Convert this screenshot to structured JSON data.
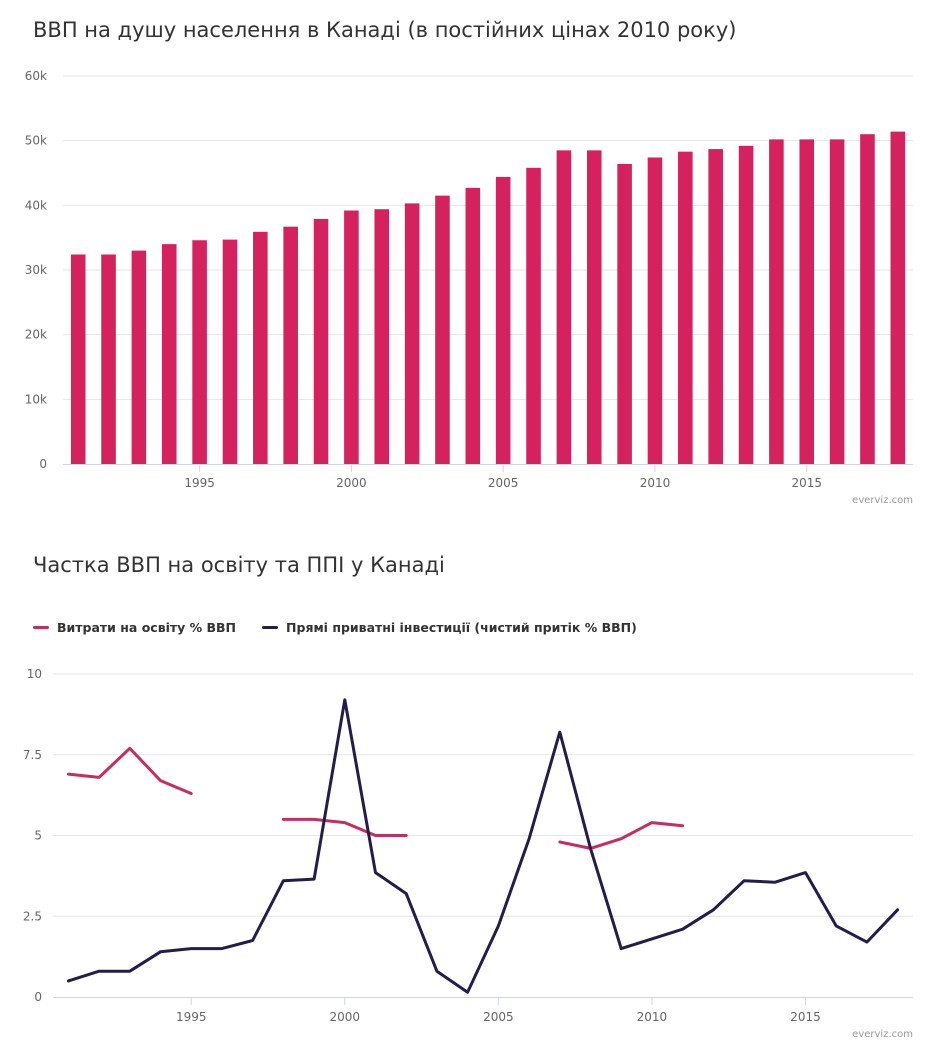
{
  "charts": [
    {
      "title": "ВВП на душу населення в Канаді (в постійних цінах 2010 року)",
      "credit": "everviz.com"
    },
    {
      "title": "Частка ВВП на освіту та ППІ у Канаді",
      "credit": "everviz.com"
    }
  ],
  "chart_data": [
    {
      "type": "bar",
      "title": "ВВП на душу населення в Канаді (в постійних цінах 2010 року)",
      "x": [
        1991,
        1992,
        1993,
        1994,
        1995,
        1996,
        1997,
        1998,
        1999,
        2000,
        2001,
        2002,
        2003,
        2004,
        2005,
        2006,
        2007,
        2008,
        2009,
        2010,
        2011,
        2012,
        2013,
        2014,
        2015,
        2016,
        2017,
        2018
      ],
      "values": [
        32400,
        32400,
        33000,
        34000,
        34600,
        34700,
        35900,
        36700,
        37900,
        39200,
        39400,
        40300,
        41500,
        42700,
        44400,
        45800,
        48500,
        48500,
        46400,
        47400,
        48300,
        48700,
        49200,
        50200,
        50200,
        50200,
        51000,
        51400
      ],
      "ylim": [
        0,
        60000
      ],
      "yticks": [
        0,
        10000,
        20000,
        30000,
        40000,
        50000,
        60000
      ],
      "ytick_labels": [
        "0",
        "10k",
        "20k",
        "30k",
        "40k",
        "50k",
        "60k"
      ],
      "xticks": [
        1995,
        2000,
        2005,
        2010,
        2015
      ],
      "xlim": [
        1990.5,
        2018.5
      ],
      "color": "#d6215f",
      "grid": true,
      "legend": false
    },
    {
      "type": "line",
      "title": "Частка ВВП на освіту та ППІ у Канаді",
      "x": [
        1991,
        1992,
        1993,
        1994,
        1995,
        1996,
        1997,
        1998,
        1999,
        2000,
        2001,
        2002,
        2003,
        2004,
        2005,
        2006,
        2007,
        2008,
        2009,
        2010,
        2011,
        2012,
        2013,
        2014,
        2015,
        2016,
        2017,
        2018
      ],
      "series": [
        {
          "name": "Витрати на освіту % ВВП",
          "color": "#c62d63",
          "values": [
            6.9,
            6.8,
            7.7,
            6.7,
            6.3,
            null,
            null,
            5.5,
            5.5,
            5.4,
            5.0,
            5.0,
            null,
            null,
            null,
            null,
            4.8,
            4.6,
            4.9,
            5.4,
            5.3,
            null,
            null,
            null,
            null,
            null,
            null,
            null
          ]
        },
        {
          "name": "Прямі приватні інвестиції (чистий притік % ВВП)",
          "color": "#241c4b",
          "values": [
            0.5,
            0.8,
            0.8,
            1.4,
            1.5,
            1.5,
            1.75,
            3.6,
            3.65,
            9.2,
            3.85,
            3.2,
            0.8,
            0.15,
            2.2,
            4.9,
            8.2,
            4.6,
            1.5,
            1.8,
            2.1,
            2.7,
            3.6,
            3.55,
            3.85,
            2.2,
            1.7,
            2.7
          ]
        }
      ],
      "ylim": [
        0,
        10
      ],
      "yticks": [
        0,
        2.5,
        5,
        7.5,
        10
      ],
      "ytick_labels": [
        "0",
        "2.5",
        "5",
        "7.5",
        "10"
      ],
      "xticks": [
        1995,
        2000,
        2005,
        2010,
        2015
      ],
      "xlim": [
        1990.5,
        2018.5
      ],
      "grid": true,
      "legend": "top-left"
    }
  ]
}
